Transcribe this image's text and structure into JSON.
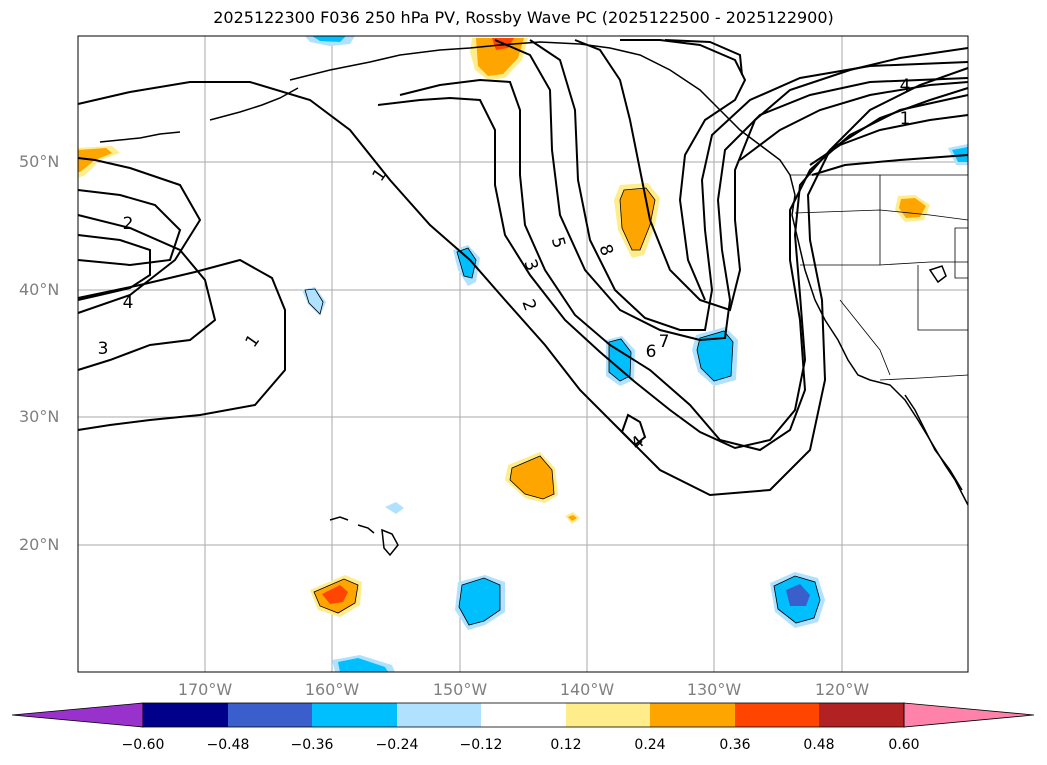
{
  "title": "2025122300 F036 250 hPa PV, Rossby Wave PC (2025122500 - 2025122900)",
  "map": {
    "lat_labels": [
      "50°N",
      "40°N",
      "30°N",
      "20°N"
    ],
    "lon_labels": [
      "170°W",
      "160°W",
      "150°W",
      "140°W",
      "130°W",
      "120°W"
    ],
    "contour_labels": [
      "1",
      "1",
      "1",
      "2",
      "2",
      "3",
      "3",
      "4",
      "4",
      "4",
      "5",
      "6",
      "7",
      "8"
    ]
  },
  "colorbar": {
    "tick_labels": [
      "−0.60",
      "−0.48",
      "−0.36",
      "−0.24",
      "−0.12",
      "0.12",
      "0.24",
      "0.36",
      "0.48",
      "0.60"
    ],
    "colors": [
      "#9932cc",
      "#00008b",
      "#3a5fcd",
      "#00bfff",
      "#b0e2ff",
      "#ffffff",
      "#ffec8b",
      "#ffa500",
      "#ff4500",
      "#b22222",
      "#ff82ab"
    ]
  }
}
